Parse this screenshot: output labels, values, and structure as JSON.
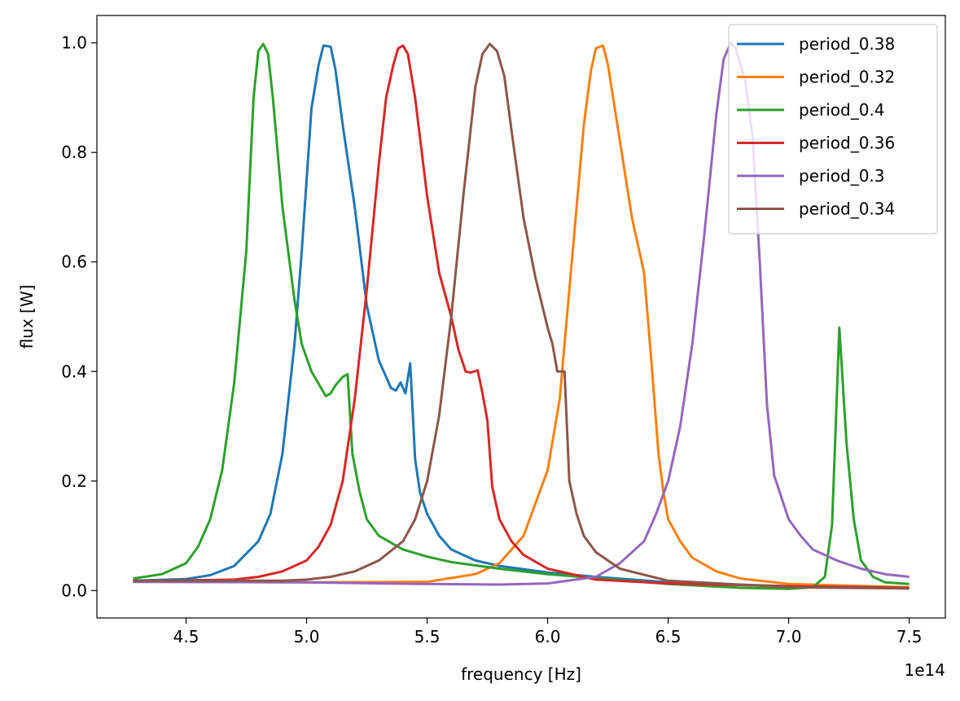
{
  "chart_data": {
    "type": "line",
    "xlabel": "frequency [Hz]",
    "ylabel": "flux [W]",
    "x_offset_label": "1e14",
    "xlim": [
      4.13,
      7.65
    ],
    "ylim": [
      -0.05,
      1.05
    ],
    "x_ticks": [
      4.5,
      5.0,
      5.5,
      6.0,
      6.5,
      7.0,
      7.5
    ],
    "x_tick_labels": [
      "4.5",
      "5.0",
      "5.5",
      "6.0",
      "6.5",
      "7.0",
      "7.5"
    ],
    "y_ticks": [
      0.0,
      0.2,
      0.4,
      0.6,
      0.8,
      1.0
    ],
    "y_tick_labels": [
      "0.0",
      "0.2",
      "0.4",
      "0.6",
      "0.8",
      "1.0"
    ],
    "grid": false,
    "legend_position": "top-right",
    "series": [
      {
        "name": "period_0.38",
        "color": "#1f77b4",
        "points": [
          [
            4.28,
            0.018
          ],
          [
            4.5,
            0.021
          ],
          [
            4.6,
            0.028
          ],
          [
            4.7,
            0.045
          ],
          [
            4.8,
            0.09
          ],
          [
            4.85,
            0.14
          ],
          [
            4.9,
            0.25
          ],
          [
            4.95,
            0.45
          ],
          [
            4.98,
            0.62
          ],
          [
            5.02,
            0.88
          ],
          [
            5.05,
            0.96
          ],
          [
            5.07,
            0.995
          ],
          [
            5.1,
            0.993
          ],
          [
            5.12,
            0.95
          ],
          [
            5.15,
            0.85
          ],
          [
            5.2,
            0.7
          ],
          [
            5.25,
            0.52
          ],
          [
            5.3,
            0.42
          ],
          [
            5.33,
            0.39
          ],
          [
            5.35,
            0.37
          ],
          [
            5.37,
            0.365
          ],
          [
            5.39,
            0.38
          ],
          [
            5.41,
            0.36
          ],
          [
            5.43,
            0.415
          ],
          [
            5.45,
            0.24
          ],
          [
            5.47,
            0.18
          ],
          [
            5.5,
            0.14
          ],
          [
            5.55,
            0.1
          ],
          [
            5.6,
            0.075
          ],
          [
            5.7,
            0.055
          ],
          [
            5.8,
            0.045
          ],
          [
            6.0,
            0.033
          ],
          [
            6.2,
            0.025
          ],
          [
            6.5,
            0.015
          ],
          [
            7.0,
            0.008
          ],
          [
            7.5,
            0.004
          ]
        ]
      },
      {
        "name": "period_0.32",
        "color": "#ff7f0e",
        "points": [
          [
            4.28,
            0.016
          ],
          [
            5.0,
            0.015
          ],
          [
            5.5,
            0.016
          ],
          [
            5.7,
            0.03
          ],
          [
            5.8,
            0.05
          ],
          [
            5.9,
            0.1
          ],
          [
            6.0,
            0.22
          ],
          [
            6.05,
            0.35
          ],
          [
            6.1,
            0.6
          ],
          [
            6.15,
            0.85
          ],
          [
            6.18,
            0.95
          ],
          [
            6.2,
            0.99
          ],
          [
            6.23,
            0.995
          ],
          [
            6.25,
            0.96
          ],
          [
            6.3,
            0.82
          ],
          [
            6.35,
            0.68
          ],
          [
            6.38,
            0.62
          ],
          [
            6.4,
            0.58
          ],
          [
            6.43,
            0.42
          ],
          [
            6.46,
            0.25
          ],
          [
            6.48,
            0.18
          ],
          [
            6.5,
            0.13
          ],
          [
            6.55,
            0.09
          ],
          [
            6.6,
            0.06
          ],
          [
            6.7,
            0.035
          ],
          [
            6.8,
            0.022
          ],
          [
            7.0,
            0.012
          ],
          [
            7.5,
            0.006
          ]
        ]
      },
      {
        "name": "period_0.4",
        "color": "#2ca02c",
        "points": [
          [
            4.28,
            0.022
          ],
          [
            4.4,
            0.03
          ],
          [
            4.5,
            0.05
          ],
          [
            4.55,
            0.08
          ],
          [
            4.6,
            0.13
          ],
          [
            4.65,
            0.22
          ],
          [
            4.7,
            0.38
          ],
          [
            4.75,
            0.62
          ],
          [
            4.78,
            0.9
          ],
          [
            4.8,
            0.985
          ],
          [
            4.82,
            0.998
          ],
          [
            4.84,
            0.98
          ],
          [
            4.86,
            0.9
          ],
          [
            4.9,
            0.7
          ],
          [
            4.95,
            0.53
          ],
          [
            4.98,
            0.45
          ],
          [
            5.02,
            0.4
          ],
          [
            5.04,
            0.385
          ],
          [
            5.06,
            0.37
          ],
          [
            5.08,
            0.355
          ],
          [
            5.1,
            0.36
          ],
          [
            5.12,
            0.375
          ],
          [
            5.15,
            0.39
          ],
          [
            5.17,
            0.395
          ],
          [
            5.19,
            0.25
          ],
          [
            5.22,
            0.18
          ],
          [
            5.25,
            0.13
          ],
          [
            5.3,
            0.1
          ],
          [
            5.4,
            0.075
          ],
          [
            5.5,
            0.062
          ],
          [
            5.6,
            0.052
          ],
          [
            5.8,
            0.04
          ],
          [
            6.0,
            0.03
          ],
          [
            6.5,
            0.012
          ],
          [
            6.8,
            0.005
          ],
          [
            7.0,
            0.003
          ],
          [
            7.1,
            0.006
          ],
          [
            7.15,
            0.025
          ],
          [
            7.18,
            0.12
          ],
          [
            7.21,
            0.48
          ],
          [
            7.24,
            0.27
          ],
          [
            7.27,
            0.13
          ],
          [
            7.3,
            0.055
          ],
          [
            7.35,
            0.025
          ],
          [
            7.4,
            0.015
          ],
          [
            7.5,
            0.012
          ]
        ]
      },
      {
        "name": "period_0.36",
        "color": "#d62728",
        "points": [
          [
            4.28,
            0.017
          ],
          [
            4.7,
            0.02
          ],
          [
            4.8,
            0.025
          ],
          [
            4.9,
            0.035
          ],
          [
            5.0,
            0.055
          ],
          [
            5.05,
            0.08
          ],
          [
            5.1,
            0.12
          ],
          [
            5.15,
            0.2
          ],
          [
            5.2,
            0.35
          ],
          [
            5.25,
            0.55
          ],
          [
            5.3,
            0.78
          ],
          [
            5.33,
            0.9
          ],
          [
            5.36,
            0.96
          ],
          [
            5.38,
            0.99
          ],
          [
            5.4,
            0.995
          ],
          [
            5.42,
            0.98
          ],
          [
            5.45,
            0.9
          ],
          [
            5.5,
            0.72
          ],
          [
            5.55,
            0.58
          ],
          [
            5.6,
            0.5
          ],
          [
            5.63,
            0.44
          ],
          [
            5.66,
            0.4
          ],
          [
            5.68,
            0.398
          ],
          [
            5.71,
            0.402
          ],
          [
            5.73,
            0.36
          ],
          [
            5.75,
            0.31
          ],
          [
            5.77,
            0.19
          ],
          [
            5.8,
            0.13
          ],
          [
            5.85,
            0.09
          ],
          [
            5.9,
            0.065
          ],
          [
            6.0,
            0.04
          ],
          [
            6.2,
            0.02
          ],
          [
            6.5,
            0.013
          ],
          [
            7.0,
            0.008
          ],
          [
            7.5,
            0.005
          ]
        ]
      },
      {
        "name": "period_0.3",
        "color": "#9467bd",
        "points": [
          [
            4.28,
            0.016
          ],
          [
            5.0,
            0.015
          ],
          [
            5.5,
            0.012
          ],
          [
            5.8,
            0.011
          ],
          [
            6.0,
            0.013
          ],
          [
            6.2,
            0.025
          ],
          [
            6.3,
            0.05
          ],
          [
            6.4,
            0.09
          ],
          [
            6.45,
            0.14
          ],
          [
            6.5,
            0.2
          ],
          [
            6.55,
            0.3
          ],
          [
            6.6,
            0.45
          ],
          [
            6.65,
            0.65
          ],
          [
            6.7,
            0.87
          ],
          [
            6.73,
            0.97
          ],
          [
            6.76,
            1.0
          ],
          [
            6.78,
            0.99
          ],
          [
            6.82,
            0.93
          ],
          [
            6.85,
            0.83
          ],
          [
            6.88,
            0.6
          ],
          [
            6.91,
            0.34
          ],
          [
            6.94,
            0.21
          ],
          [
            6.97,
            0.17
          ],
          [
            7.0,
            0.13
          ],
          [
            7.05,
            0.1
          ],
          [
            7.1,
            0.075
          ],
          [
            7.2,
            0.055
          ],
          [
            7.3,
            0.04
          ],
          [
            7.4,
            0.03
          ],
          [
            7.5,
            0.025
          ]
        ]
      },
      {
        "name": "period_0.34",
        "color": "#8c564b",
        "points": [
          [
            4.28,
            0.018
          ],
          [
            4.9,
            0.018
          ],
          [
            5.0,
            0.02
          ],
          [
            5.1,
            0.025
          ],
          [
            5.2,
            0.035
          ],
          [
            5.3,
            0.055
          ],
          [
            5.4,
            0.09
          ],
          [
            5.45,
            0.13
          ],
          [
            5.5,
            0.2
          ],
          [
            5.55,
            0.32
          ],
          [
            5.6,
            0.5
          ],
          [
            5.65,
            0.72
          ],
          [
            5.7,
            0.92
          ],
          [
            5.73,
            0.98
          ],
          [
            5.76,
            0.998
          ],
          [
            5.79,
            0.985
          ],
          [
            5.82,
            0.94
          ],
          [
            5.85,
            0.84
          ],
          [
            5.9,
            0.68
          ],
          [
            5.95,
            0.57
          ],
          [
            6.0,
            0.48
          ],
          [
            6.02,
            0.45
          ],
          [
            6.04,
            0.4
          ],
          [
            6.07,
            0.4
          ],
          [
            6.09,
            0.2
          ],
          [
            6.12,
            0.14
          ],
          [
            6.15,
            0.1
          ],
          [
            6.2,
            0.07
          ],
          [
            6.3,
            0.04
          ],
          [
            6.5,
            0.018
          ],
          [
            7.0,
            0.006
          ],
          [
            7.5,
            0.004
          ]
        ]
      }
    ]
  }
}
